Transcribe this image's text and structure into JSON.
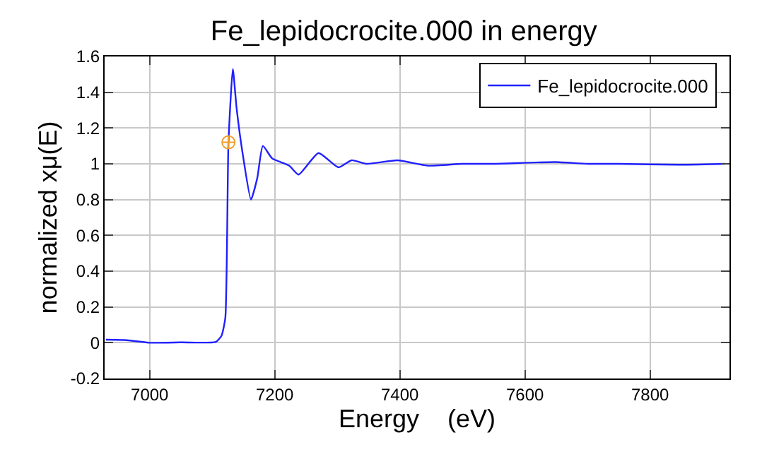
{
  "chart_data": {
    "type": "line",
    "title": "Fe_lepidocrocite.000 in energy",
    "xlabel": "Energy    (eV)",
    "ylabel": "normalized xμ(E)",
    "xlim": [
      6928,
      7927
    ],
    "xticks": [
      7000,
      7200,
      7400,
      7600,
      7800
    ],
    "ylim": [
      -0.2,
      1.6
    ],
    "yticks": [
      -0.2,
      0,
      0.2,
      0.4,
      0.6,
      0.8,
      1,
      1.2,
      1.4,
      1.6
    ],
    "grid": true,
    "legend": "top right",
    "marker": "none",
    "line_style": "solid",
    "series": [
      {
        "name": "Fe_lepidocrocite.000",
        "color": "#2020ff",
        "x": [
          6930,
          6960,
          7001,
          7050,
          7106,
          7115,
          7121,
          7126,
          7133,
          7139,
          7149,
          7162,
          7172,
          7181,
          7196,
          7223,
          7238,
          7270,
          7302,
          7323,
          7347,
          7396,
          7444,
          7500,
          7550,
          7648,
          7700,
          7750,
          7845,
          7920
        ],
        "values": [
          0.017,
          0.015,
          0,
          0.002,
          0.005,
          0.04,
          0.14,
          1.12,
          1.53,
          1.31,
          1.05,
          0.8,
          0.92,
          1.1,
          1.03,
          0.99,
          0.94,
          1.06,
          0.98,
          1.02,
          1.0,
          1.02,
          0.99,
          1.0,
          1.0,
          1.01,
          1.0,
          1.0,
          0.995,
          1.0
        ]
      },
      {
        "type": "scatter",
        "marker": "cross",
        "color": "#f0a030",
        "x": [
          7126
        ],
        "values": [
          1.12
        ]
      }
    ]
  }
}
